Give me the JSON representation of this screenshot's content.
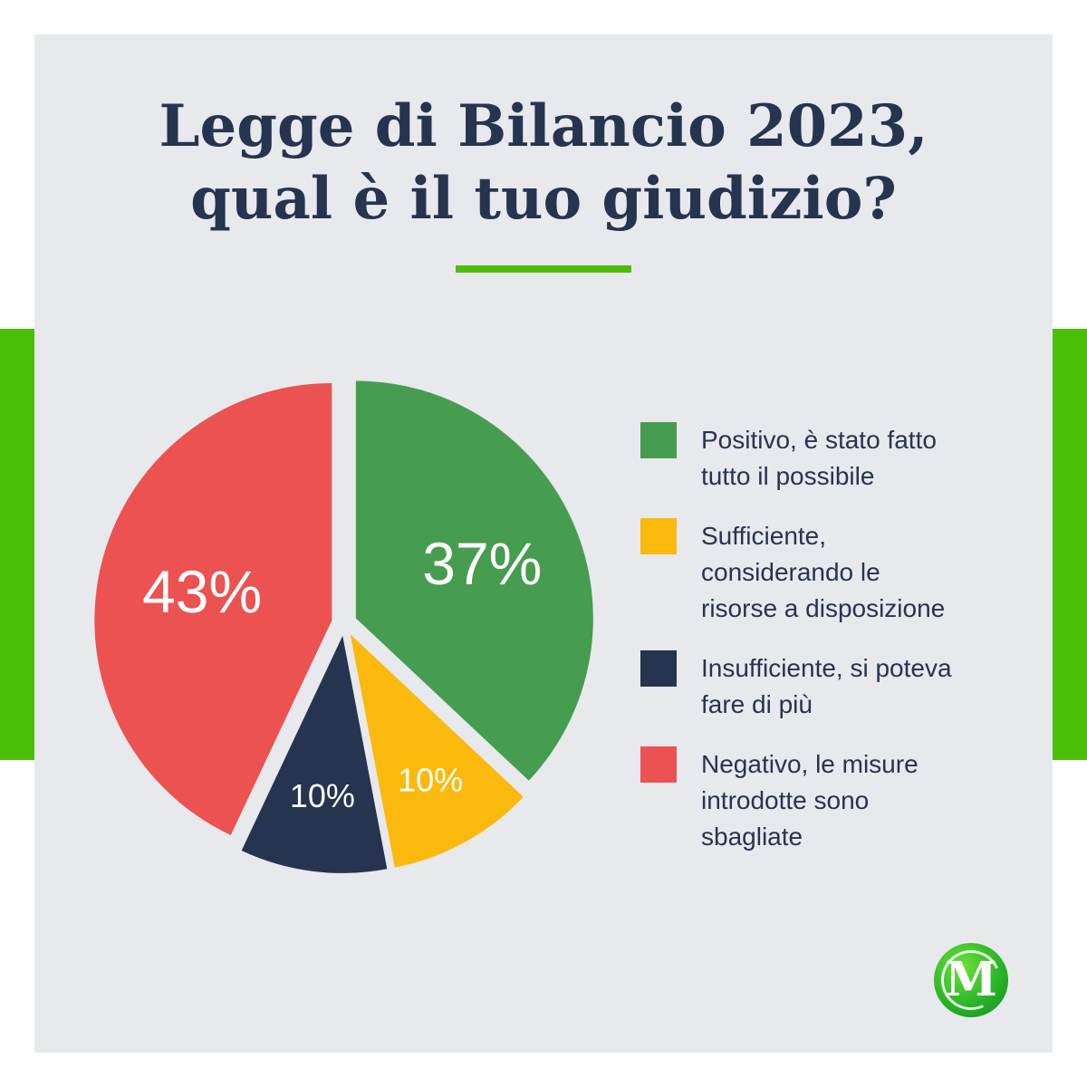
{
  "title": {
    "line1": "Legge di Bilancio 2023,",
    "line2": "qual è il tuo giudizio?"
  },
  "colors": {
    "accent": "#4cbe0a",
    "background": "#e8e9ed",
    "title": "#263450"
  },
  "chart_data": {
    "type": "pie",
    "slices": [
      {
        "label": "Positivo, è stato fatto tutto il possibile",
        "value": 37,
        "display": "37%",
        "color": "#479d4f"
      },
      {
        "label": "Sufficiente, considerando le risorse a disposizione",
        "value": 10,
        "display": "10%",
        "color": "#fbb90d"
      },
      {
        "label": "Insufficiente, si poteva fare di più",
        "value": 10,
        "display": "10%",
        "color": "#263450"
      },
      {
        "label": "Negativo, le misure introdotte sono sbagliate",
        "value": 43,
        "display": "43%",
        "color": "#ec5252"
      }
    ],
    "legend_placement": "right"
  },
  "legend": {
    "items": [
      {
        "lines": [
          "Positivo, è stato fatto",
          "tutto il possibile"
        ]
      },
      {
        "lines": [
          "Sufficiente,",
          "considerando le",
          "risorse a disposizione"
        ]
      },
      {
        "lines": [
          "Insufficiente, si poteva",
          "fare di più"
        ]
      },
      {
        "lines": [
          "Negativo, le misure",
          "introdotte sono",
          "sbagliate"
        ]
      }
    ]
  },
  "logo": {
    "letter": "M",
    "icon": "magazine-logo-icon"
  }
}
